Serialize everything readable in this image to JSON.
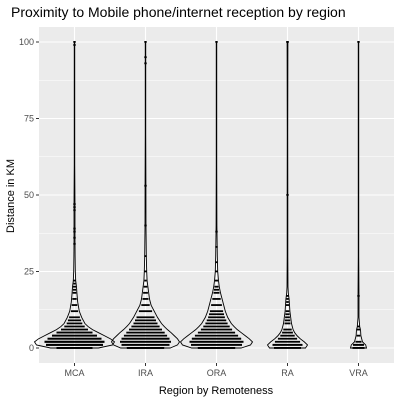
{
  "chart_data": {
    "type": "violin",
    "title": "Proximity to Mobile phone/internet reception by region",
    "xlabel": "Region by Remoteness",
    "ylabel": "Distance in KM",
    "categories": [
      "MCA",
      "IRA",
      "ORA",
      "RA",
      "VRA"
    ],
    "ylim": [
      0,
      100
    ],
    "yticks": [
      0,
      25,
      50,
      75,
      100
    ],
    "grid": true,
    "legend": "none",
    "colors": {
      "panel": "#ebebeb",
      "grid": "#ffffff",
      "outline": "#000000",
      "dots": "#000000"
    },
    "distributions": [
      {
        "category": "MCA",
        "profile": [
          [
            0,
            0.6
          ],
          [
            1,
            0.95
          ],
          [
            2,
            1.0
          ],
          [
            3,
            0.9
          ],
          [
            4,
            0.75
          ],
          [
            5,
            0.6
          ],
          [
            6,
            0.45
          ],
          [
            7,
            0.34
          ],
          [
            8,
            0.26
          ],
          [
            10,
            0.18
          ],
          [
            12,
            0.12
          ],
          [
            15,
            0.08
          ],
          [
            18,
            0.06
          ],
          [
            20,
            0.05
          ],
          [
            22,
            0.03
          ],
          [
            25,
            0.02
          ],
          [
            30,
            0.015
          ],
          [
            35,
            0.012
          ],
          [
            40,
            0.012
          ],
          [
            47,
            0.012
          ],
          [
            60,
            0.006
          ],
          [
            80,
            0.006
          ],
          [
            100,
            0.006
          ]
        ],
        "dots": [
          0,
          0,
          0,
          1,
          1,
          1,
          2,
          2,
          2,
          3,
          3,
          4,
          4,
          5,
          5,
          6,
          7,
          8,
          9,
          10,
          12,
          14,
          16,
          18,
          19,
          20,
          21,
          22,
          34,
          36,
          38,
          39,
          45,
          46,
          47,
          99,
          100
        ]
      },
      {
        "category": "IRA",
        "profile": [
          [
            0,
            0.62
          ],
          [
            1,
            0.8
          ],
          [
            2,
            0.85
          ],
          [
            3,
            0.8
          ],
          [
            4,
            0.72
          ],
          [
            5,
            0.64
          ],
          [
            6,
            0.55
          ],
          [
            7,
            0.47
          ],
          [
            8,
            0.4
          ],
          [
            10,
            0.3
          ],
          [
            12,
            0.22
          ],
          [
            14,
            0.14
          ],
          [
            16,
            0.1
          ],
          [
            18,
            0.08
          ],
          [
            20,
            0.06
          ],
          [
            22,
            0.04
          ],
          [
            25,
            0.03
          ],
          [
            30,
            0.02
          ],
          [
            40,
            0.012
          ],
          [
            55,
            0.01
          ],
          [
            70,
            0.006
          ],
          [
            100,
            0.006
          ]
        ],
        "dots": [
          0,
          0,
          0,
          1,
          1,
          2,
          2,
          3,
          3,
          4,
          5,
          6,
          7,
          8,
          9,
          10,
          12,
          14,
          16,
          18,
          20,
          22,
          25,
          30,
          40,
          53,
          93,
          95,
          100
        ]
      },
      {
        "category": "ORA",
        "profile": [
          [
            0,
            0.62
          ],
          [
            1,
            0.85
          ],
          [
            2,
            0.9
          ],
          [
            3,
            0.82
          ],
          [
            4,
            0.72
          ],
          [
            5,
            0.62
          ],
          [
            6,
            0.52
          ],
          [
            7,
            0.44
          ],
          [
            8,
            0.37
          ],
          [
            10,
            0.28
          ],
          [
            12,
            0.22
          ],
          [
            14,
            0.18
          ],
          [
            16,
            0.14
          ],
          [
            18,
            0.1
          ],
          [
            20,
            0.07
          ],
          [
            22,
            0.05
          ],
          [
            25,
            0.03
          ],
          [
            30,
            0.02
          ],
          [
            35,
            0.015
          ],
          [
            40,
            0.01
          ],
          [
            60,
            0.006
          ],
          [
            100,
            0.006
          ]
        ],
        "dots": [
          0,
          0,
          0,
          1,
          1,
          2,
          2,
          3,
          3,
          4,
          5,
          6,
          7,
          8,
          9,
          10,
          11,
          12,
          14,
          16,
          18,
          19,
          20,
          22,
          25,
          28,
          33,
          38,
          100
        ]
      },
      {
        "category": "RA",
        "profile": [
          [
            0,
            0.45
          ],
          [
            1,
            0.5
          ],
          [
            2,
            0.42
          ],
          [
            3,
            0.32
          ],
          [
            4,
            0.24
          ],
          [
            5,
            0.18
          ],
          [
            6,
            0.14
          ],
          [
            8,
            0.1
          ],
          [
            10,
            0.08
          ],
          [
            12,
            0.06
          ],
          [
            14,
            0.05
          ],
          [
            16,
            0.04
          ],
          [
            18,
            0.02
          ],
          [
            20,
            0.012
          ],
          [
            30,
            0.008
          ],
          [
            50,
            0.008
          ],
          [
            70,
            0.006
          ],
          [
            100,
            0.01
          ]
        ],
        "dots": [
          0,
          0,
          1,
          1,
          2,
          3,
          4,
          5,
          6,
          8,
          9,
          10,
          11,
          12,
          14,
          15,
          16,
          17,
          50,
          100,
          100
        ]
      },
      {
        "category": "VRA",
        "profile": [
          [
            0,
            0.2
          ],
          [
            1,
            0.18
          ],
          [
            2,
            0.1
          ],
          [
            4,
            0.06
          ],
          [
            6,
            0.05
          ],
          [
            7,
            0.03
          ],
          [
            10,
            0.012
          ],
          [
            17,
            0.012
          ],
          [
            30,
            0.006
          ],
          [
            100,
            0.006
          ]
        ],
        "dots": [
          0,
          0,
          1,
          1,
          2,
          4,
          6,
          7,
          17,
          100
        ]
      }
    ]
  }
}
